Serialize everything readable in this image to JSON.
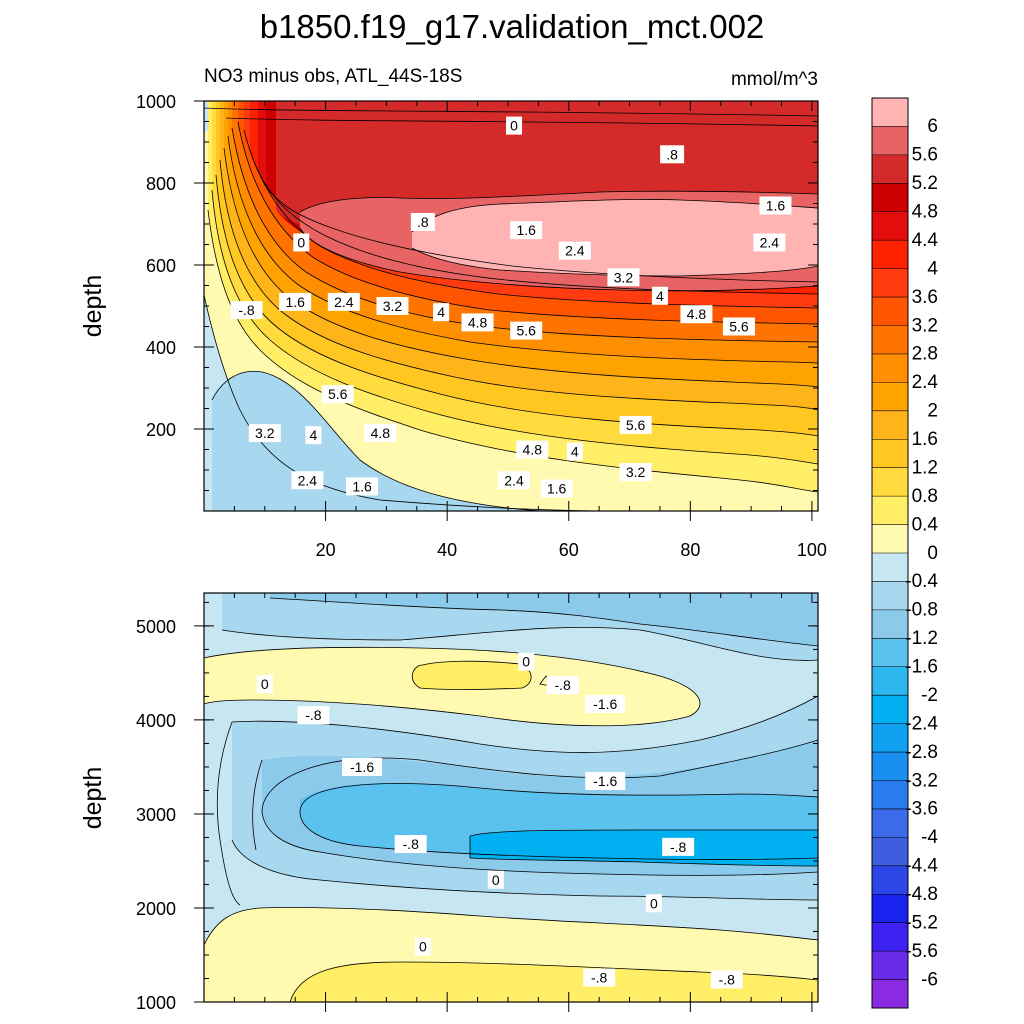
{
  "title": "b1850.f19_g17.validation_mct.002",
  "chart_data": [
    {
      "type": "heatmap",
      "panel": "upper",
      "left_label": "NO3 minus obs, ATL_44S-18S",
      "right_label": "mmol/m^3",
      "ylabel": "depth",
      "x_ticks": [
        "20",
        "40",
        "60",
        "80",
        "100"
      ],
      "y_ticks": [
        "200",
        "400",
        "600",
        "800",
        "1000"
      ],
      "xlim": [
        0,
        101
      ],
      "ylim": [
        1000,
        0
      ],
      "contour_labels": [
        {
          "text": "2.4",
          "x": 17,
          "y": 75
        },
        {
          "text": "1.6",
          "x": 26,
          "y": 60
        },
        {
          "text": "2.4",
          "x": 51,
          "y": 75
        },
        {
          "text": "1.6",
          "x": 58,
          "y": 55
        },
        {
          "text": "3.2",
          "x": 71,
          "y": 95
        },
        {
          "text": "3.2",
          "x": 10,
          "y": 190
        },
        {
          "text": "4",
          "x": 18,
          "y": 185
        },
        {
          "text": "4.8",
          "x": 29,
          "y": 190
        },
        {
          "text": "4.8",
          "x": 54,
          "y": 150
        },
        {
          "text": "4",
          "x": 61,
          "y": 145
        },
        {
          "text": "5.6",
          "x": 71,
          "y": 210
        },
        {
          "text": "5.6",
          "x": 22,
          "y": 285
        },
        {
          "text": "-.8",
          "x": 7,
          "y": 490
        },
        {
          "text": "1.6",
          "x": 15,
          "y": 510
        },
        {
          "text": "2.4",
          "x": 23,
          "y": 510
        },
        {
          "text": "3.2",
          "x": 31,
          "y": 500
        },
        {
          "text": "4",
          "x": 39,
          "y": 485
        },
        {
          "text": "4.8",
          "x": 45,
          "y": 460
        },
        {
          "text": "5.6",
          "x": 53,
          "y": 440
        },
        {
          "text": "4.8",
          "x": 81,
          "y": 480
        },
        {
          "text": "5.6",
          "x": 88,
          "y": 450
        },
        {
          "text": "4",
          "x": 75,
          "y": 525
        },
        {
          "text": "3.2",
          "x": 69,
          "y": 570
        },
        {
          "text": "2.4",
          "x": 61,
          "y": 635
        },
        {
          "text": "1.6",
          "x": 53,
          "y": 685
        },
        {
          "text": ".8",
          "x": 36,
          "y": 705
        },
        {
          "text": "0",
          "x": 16,
          "y": 655
        },
        {
          "text": "2.4",
          "x": 93,
          "y": 655
        },
        {
          "text": "1.6",
          "x": 94,
          "y": 745
        },
        {
          "text": ".8",
          "x": 77,
          "y": 870
        },
        {
          "text": "0",
          "x": 51,
          "y": 940
        }
      ]
    },
    {
      "type": "heatmap",
      "panel": "lower",
      "ylabel": "depth",
      "y_ticks": [
        "1000",
        "2000",
        "3000",
        "4000",
        "5000"
      ],
      "xlim": [
        0,
        101
      ],
      "ylim": [
        5350,
        1000
      ],
      "contour_labels": [
        {
          "text": "-.8",
          "x": 65,
          "y": 1260
        },
        {
          "text": "-.8",
          "x": 86,
          "y": 1240
        },
        {
          "text": "0",
          "x": 36,
          "y": 1590
        },
        {
          "text": "0",
          "x": 74,
          "y": 2050
        },
        {
          "text": "0",
          "x": 48,
          "y": 2300
        },
        {
          "text": "-.8",
          "x": 34,
          "y": 2680
        },
        {
          "text": "-.8",
          "x": 78,
          "y": 2650
        },
        {
          "text": "-1.6",
          "x": 66,
          "y": 3350
        },
        {
          "text": "-1.6",
          "x": 26,
          "y": 3500
        },
        {
          "text": "-.8",
          "x": 18,
          "y": 4050
        },
        {
          "text": "-1.6",
          "x": 66,
          "y": 4170
        },
        {
          "text": "-.8",
          "x": 59,
          "y": 4370
        },
        {
          "text": "0",
          "x": 10,
          "y": 4380
        },
        {
          "text": "0",
          "x": 53,
          "y": 4620
        }
      ]
    }
  ],
  "colorbar": {
    "labels": [
      "6",
      "5.6",
      "5.2",
      "4.8",
      "4.4",
      "4",
      "3.6",
      "3.2",
      "2.8",
      "2.4",
      "2",
      "1.6",
      "1.2",
      "0.8",
      "0.4",
      "0",
      "-0.4",
      "-0.8",
      "-1.2",
      "-1.6",
      "-2",
      "-2.4",
      "-2.8",
      "-3.2",
      "-3.6",
      "-4",
      "-4.4",
      "-4.8",
      "-5.2",
      "-5.6",
      "-6"
    ],
    "colors": [
      "#ffb3b3",
      "#e86464",
      "#d42a2a",
      "#cc0000",
      "#e30d0d",
      "#ff2200",
      "#ff3b0f",
      "#ff5500",
      "#ff7400",
      "#ff8e00",
      "#ffa300",
      "#ffb51a",
      "#ffc71f",
      "#ffdb3d",
      "#ffee66",
      "#fffab0",
      "#c6e6f2",
      "#a8d8ef",
      "#8ccaec",
      "#5bc2f0",
      "#2cb6ee",
      "#00b0f0",
      "#0fa0ef",
      "#198ff0",
      "#2a7bed",
      "#3b6be8",
      "#3d5ede",
      "#2d46e8",
      "#1a22f0",
      "#3d20f2",
      "#6a2ce8",
      "#8a2be2"
    ]
  }
}
